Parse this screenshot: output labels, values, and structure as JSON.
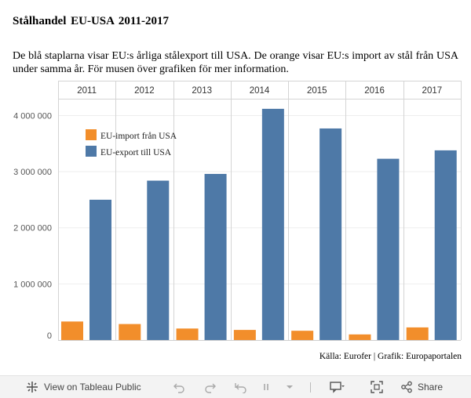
{
  "page": {
    "title": "Stålhandel  EU-USA  2011-2017",
    "description": "De blå staplarna visar EU:s årliga stålexport till USA. De orange visar EU:s import av stål från USA under samma år. För musen över grafiken för mer information.",
    "source": "Källa: Eurofer | Grafik: Europaportalen"
  },
  "colors": {
    "import": "#f28e2b",
    "export": "#4e79a7"
  },
  "chart_data": {
    "type": "bar",
    "categories": [
      "2011",
      "2012",
      "2013",
      "2014",
      "2015",
      "2016",
      "2017"
    ],
    "series": [
      {
        "name": "EU-import från USA",
        "values": [
          330000,
          285000,
          205000,
          180000,
          165000,
          100000,
          225000
        ]
      },
      {
        "name": "EU-export till USA",
        "values": [
          2500000,
          2840000,
          2960000,
          4120000,
          3770000,
          3230000,
          3380000
        ]
      }
    ],
    "ylim": [
      0,
      4300000
    ],
    "yticks": [
      0,
      1000000,
      2000000,
      3000000,
      4000000
    ],
    "ytick_labels": [
      "0",
      "1 000 000",
      "2 000 000",
      "3 000 000",
      "4 000 000"
    ],
    "legend_position": "top-left",
    "grid": true
  },
  "toolbar": {
    "view_label": "View on Tableau Public",
    "share_label": "Share"
  }
}
